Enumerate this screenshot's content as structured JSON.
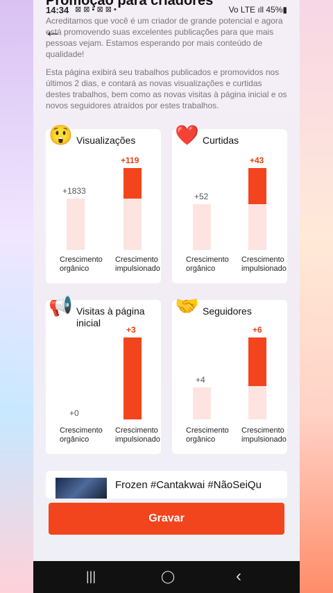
{
  "status_bar": {
    "time": "14:34",
    "notifications": "⊠ ⊠ ▪ ⊠ ⊠ •",
    "right": "Vo LTE ıll 45%▮"
  },
  "page": {
    "title": "Promoção para criadores"
  },
  "intro": {
    "p1": "Acreditamos que você é um criador de grande potencial e agora está promovendo suas excelentes publicações para que mais pessoas vejam. Estamos esperando por mais conteúdo de qualidade!",
    "p2": "Esta página exibirá seu trabalhos publicados e promovidos nos últimos 2 dias, e contará as novas visualizações e curtidas destes trabalhos, bem como as novas visitas à página inicial e os novos seguidores atraídos por estes trabalhos."
  },
  "captions": {
    "organic": "Crescimento orgânico",
    "boosted": "Crescimento impulsionado"
  },
  "cards": [
    {
      "title": "Visualizações",
      "icon": "astonished-face-icon",
      "emoji": "😲",
      "organic": "+1833",
      "boosted": "+119",
      "organic_ratio": 0.6,
      "boosted_ratio": 0.6
    },
    {
      "title": "Curtidas",
      "icon": "heart-icon",
      "emoji": "❤️",
      "organic": "+52",
      "boosted": "+43",
      "organic_ratio": 0.55,
      "boosted_ratio": 0.55
    },
    {
      "title": "Visitas à página inicial",
      "icon": "megaphone-icon",
      "emoji": "📢",
      "organic": "+0",
      "boosted": "+3",
      "organic_ratio": 0.0,
      "boosted_ratio": 1.0
    },
    {
      "title": "Seguidores",
      "icon": "handshake-icon",
      "emoji": "🤝",
      "organic": "+4",
      "boosted": "+6",
      "organic_ratio": 0.4,
      "boosted_ratio": 0.6
    }
  ],
  "video": {
    "title": "Frozen #Cantakwai #NãoSeiQu"
  },
  "record_button": {
    "label": "Gravar"
  },
  "nav": {
    "recent": "|||",
    "home": "◯",
    "back": "‹"
  },
  "colors": {
    "accent": "#f2451d",
    "bar_bg": "#fde4e0"
  }
}
